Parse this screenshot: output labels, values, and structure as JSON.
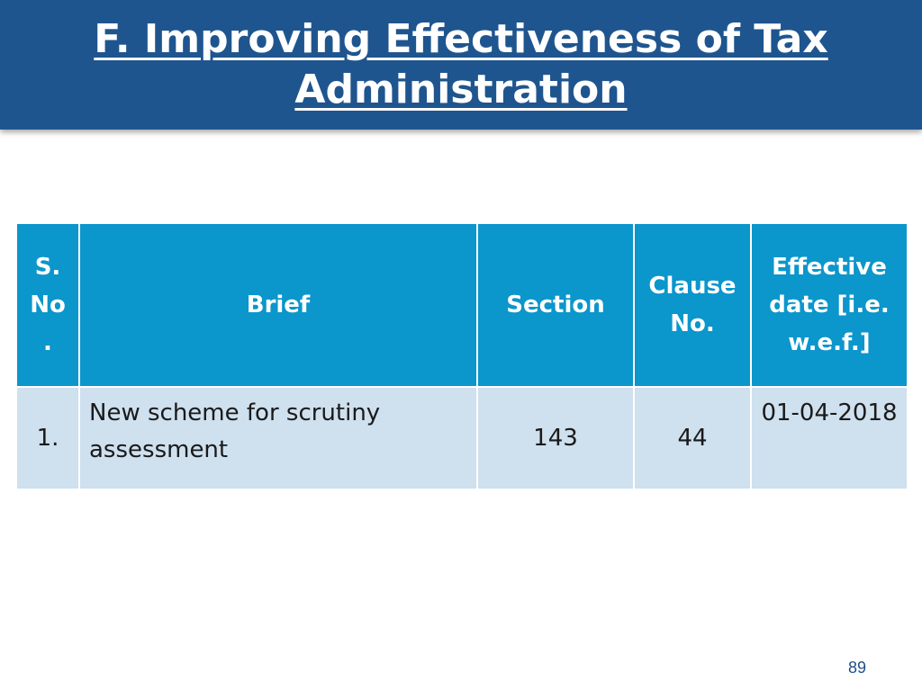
{
  "slide": {
    "title": "F. Improving Effectiveness of Tax Administration",
    "page_number": "89"
  },
  "table": {
    "headers": {
      "sno": "S. No .",
      "brief": "Brief",
      "section": "Section",
      "clause": "Clause No.",
      "effective_date": "Effective date [i.e. w.e.f.]"
    },
    "rows": [
      {
        "sno": "1.",
        "brief": "New scheme for scrutiny assessment",
        "section": "143",
        "clause": "44",
        "effective_date": "01-04-2018"
      }
    ]
  },
  "colors": {
    "title_bar": "#1f558f",
    "header_fill": "#0b96cc",
    "row_fill": "#cfe0ef",
    "page_number": "#1f4e8a"
  }
}
